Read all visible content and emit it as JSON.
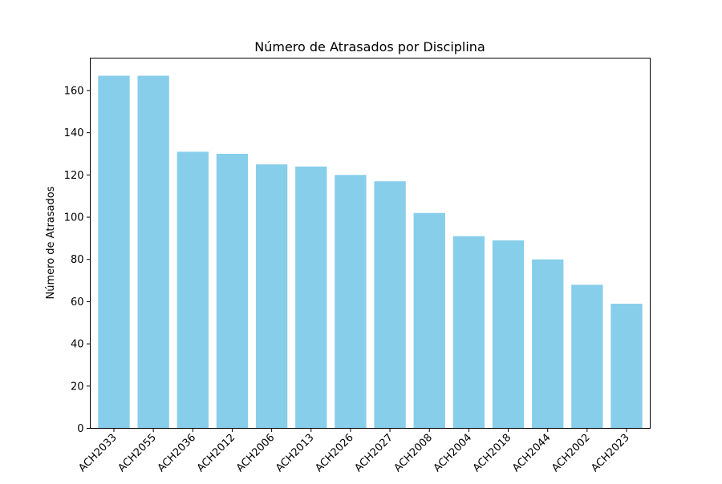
{
  "chart_data": {
    "type": "bar",
    "title": "Número de Atrasados por Disciplina",
    "xlabel": "",
    "ylabel": "Número de Atrasados",
    "categories": [
      "ACH2033",
      "ACH2055",
      "ACH2036",
      "ACH2012",
      "ACH2006",
      "ACH2013",
      "ACH2026",
      "ACH2027",
      "ACH2008",
      "ACH2004",
      "ACH2018",
      "ACH2044",
      "ACH2002",
      "ACH2023"
    ],
    "values": [
      167,
      167,
      131,
      130,
      125,
      124,
      120,
      117,
      102,
      91,
      89,
      80,
      68,
      59
    ],
    "ylim": [
      0,
      175.35
    ],
    "yticks": [
      0,
      20,
      40,
      60,
      80,
      100,
      120,
      140,
      160
    ],
    "bar_color": "#87ceeb",
    "grid": false,
    "legend": "none"
  }
}
